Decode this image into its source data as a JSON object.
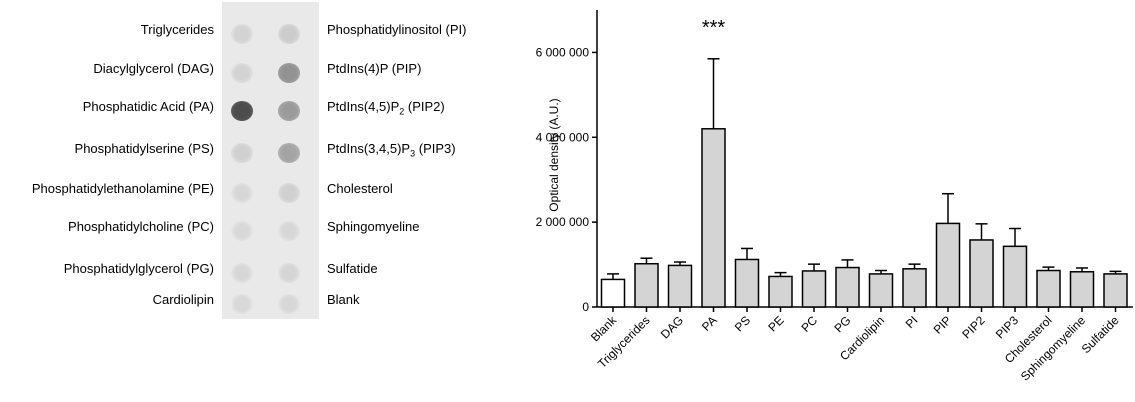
{
  "blot": {
    "left_labels": [
      "Triglycerides",
      "Diacylglycerol (DAG)",
      "Phosphatidic Acid (PA)",
      "Phosphatidylserine (PS)",
      "Phosphatidylethanolamine (PE)",
      "Phosphatidylcholine (PC)",
      "Phosphatidylglycerol (PG)",
      "Cardiolipin"
    ],
    "right_labels": [
      {
        "text": "Phosphatidylinositol (PI)"
      },
      {
        "text": "PtdIns(4)P (PIP)"
      },
      {
        "pre": "PtdIns(4,5)P",
        "sub": "2",
        "post": " (PIP2)"
      },
      {
        "pre": "PtdIns(3,4,5)P",
        "sub": "3",
        "post": " (PIP3)"
      },
      {
        "text": "Cholesterol"
      },
      {
        "text": "Sphingomyeline"
      },
      {
        "text": "Sulfatide"
      },
      {
        "text": "Blank"
      }
    ],
    "left_spot_intensity": [
      0.08,
      0.08,
      0.85,
      0.1,
      0.06,
      0.05,
      0.06,
      0.05
    ],
    "right_spot_intensity": [
      0.12,
      0.45,
      0.4,
      0.35,
      0.1,
      0.06,
      0.07,
      0.06
    ],
    "spot_color": "#3a3a3a"
  },
  "chart_data": {
    "type": "bar",
    "ylabel": "Optical density (A.U.)",
    "ylim": [
      0,
      7000000
    ],
    "yticks": [
      0,
      2000000,
      4000000,
      6000000
    ],
    "ytick_labels": [
      "0",
      "2 000 000",
      "4 000 000",
      "6 000 000"
    ],
    "categories": [
      "Blank",
      "Triglycerides",
      "DAG",
      "PA",
      "PS",
      "PE",
      "PC",
      "PG",
      "Cardiolipin",
      "PI",
      "PIP",
      "PIP2",
      "PIP3",
      "Cholesterol",
      "Sphingomyeline",
      "Sulfatide"
    ],
    "values": [
      650000,
      1020000,
      980000,
      4200000,
      1120000,
      720000,
      850000,
      930000,
      780000,
      900000,
      1970000,
      1580000,
      1430000,
      860000,
      830000,
      780000
    ],
    "errors": [
      130000,
      130000,
      80000,
      1650000,
      260000,
      90000,
      160000,
      180000,
      80000,
      110000,
      700000,
      380000,
      420000,
      80000,
      90000,
      60000
    ],
    "bar_colors": [
      "#ffffff",
      "#d4d4d4",
      "#d4d4d4",
      "#d4d4d4",
      "#d4d4d4",
      "#d4d4d4",
      "#d4d4d4",
      "#d4d4d4",
      "#d4d4d4",
      "#d4d4d4",
      "#d4d4d4",
      "#d4d4d4",
      "#d4d4d4",
      "#d4d4d4",
      "#d4d4d4",
      "#d4d4d4"
    ],
    "annotations": [
      {
        "category": "PA",
        "text": "***"
      }
    ],
    "grid": false
  }
}
